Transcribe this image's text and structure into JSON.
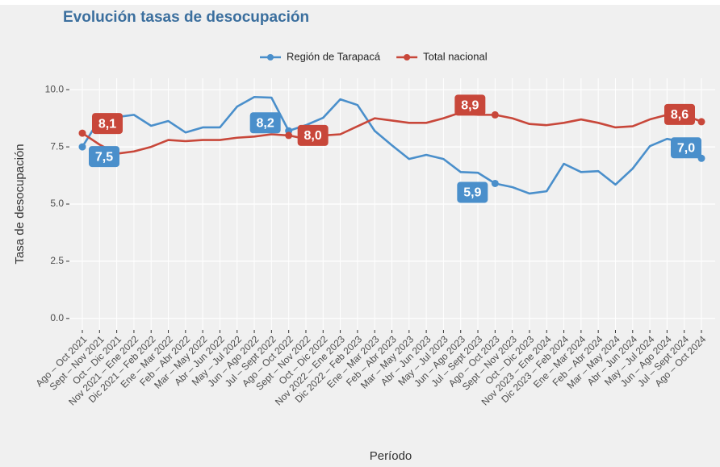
{
  "chart_data": {
    "type": "line",
    "title": "Evolución tasas de desocupación",
    "x_label": "Período",
    "y_label": "Tasa de desocupación",
    "categories": [
      "Ago – Oct 2021",
      "Sept – Nov 2021",
      "Oct – Dic 2021",
      "Nov 2021 – Ene 2022",
      "Dic 2021 – Feb 2022",
      "Ene – Mar 2022",
      "Feb – Abr 2022",
      "Mar – May 2022",
      "Abr – Jun 2022",
      "May – Jul 2022",
      "Jun – Ago 2022",
      "Jul – Sept 2022",
      "Ago – Oct 2022",
      "Sept – Nov 2022",
      "Oct – Dic 2022",
      "Nov 2022 – Ene 2023",
      "Dic 2022 – Feb 2023",
      "Ene – Mar 2023",
      "Feb – Abr 2023",
      "Mar – May 2023",
      "Abr – Jun 2023",
      "May – Jul 2023",
      "Jun – Ago 2023",
      "Jul – Sept 2023",
      "Ago – Oct 2023",
      "Sept – Nov 2023",
      "Oct – Dic 2023",
      "Nov 2023 – Ene 2024",
      "Dic 2023 – Feb 2024",
      "Ene – Mar 2024",
      "Feb – Abr 2024",
      "Mar – May 2024",
      "Abr – Jun 2024",
      "May – Jul 2024",
      "Jun – Ago 2024",
      "Jul – Sept 2024",
      "Ago – Oct 2024"
    ],
    "series": [
      {
        "name": "Región de Tarapacá",
        "color": "#4a8fcb",
        "values": [
          7.5,
          8.7,
          8.8,
          8.9,
          8.42,
          8.63,
          8.13,
          8.35,
          8.35,
          9.26,
          9.68,
          9.65,
          8.2,
          8.45,
          8.77,
          9.58,
          9.33,
          8.2,
          7.57,
          6.97,
          7.15,
          6.97,
          6.4,
          6.37,
          5.9,
          5.74,
          5.46,
          5.56,
          6.76,
          6.4,
          6.44,
          5.85,
          6.55,
          7.53,
          7.85,
          7.7,
          7.0
        ],
        "value_labels": [
          "7,5",
          null,
          null,
          null,
          null,
          null,
          null,
          null,
          null,
          null,
          null,
          null,
          "8,2",
          null,
          null,
          null,
          null,
          null,
          null,
          null,
          null,
          null,
          null,
          null,
          "5,9",
          null,
          null,
          null,
          null,
          null,
          null,
          null,
          null,
          null,
          null,
          null,
          "7,0"
        ]
      },
      {
        "name": "Total nacional",
        "color": "#c8473a",
        "values": [
          8.1,
          7.6,
          7.2,
          7.3,
          7.5,
          7.8,
          7.75,
          7.8,
          7.8,
          7.9,
          7.95,
          8.05,
          8.0,
          7.85,
          8.0,
          8.05,
          8.4,
          8.75,
          8.65,
          8.55,
          8.55,
          8.75,
          9.0,
          8.9,
          8.9,
          8.75,
          8.5,
          8.45,
          8.55,
          8.7,
          8.55,
          8.35,
          8.4,
          8.7,
          8.9,
          8.9,
          8.6
        ],
        "value_labels": [
          "8,1",
          null,
          null,
          null,
          null,
          null,
          null,
          null,
          null,
          null,
          null,
          null,
          "8,0",
          null,
          null,
          null,
          null,
          null,
          null,
          null,
          null,
          null,
          null,
          null,
          "8,9",
          null,
          null,
          null,
          null,
          null,
          null,
          null,
          null,
          null,
          null,
          null,
          "8,6"
        ]
      }
    ],
    "ylim": [
      -0.5,
      10.5
    ],
    "yticks": [
      {
        "value": 0,
        "label": "0.0"
      },
      2.5,
      {
        "value": 5,
        "label": "5.0"
      },
      7.5,
      {
        "value": 10,
        "label": "10.0"
      }
    ],
    "grid": true,
    "legend": "top"
  }
}
